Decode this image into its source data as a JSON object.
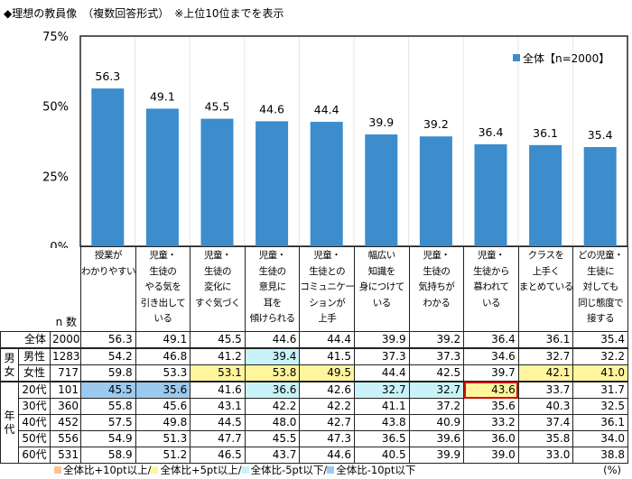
{
  "title": "◆理想の教員像　（複数回答形式）　※上位10位までを表示",
  "chart_data": {
    "type": "bar",
    "ylim": [
      0,
      75
    ],
    "yticks": [
      "0%",
      "25%",
      "50%",
      "75%"
    ],
    "ytick_values": [
      0,
      25,
      50,
      75
    ],
    "grid": "vertical separators",
    "legend_placement": "top-right",
    "bar_color": "#3d8ccc",
    "categories": [
      "授業がわかりやすい",
      "児童・生徒のやる気を引き出している",
      "児童・生徒の変化にすぐ気づく",
      "児童・生徒の意見に耳を傾けられる",
      "児童・生徒とのコミュニケーションが上手",
      "幅広い知識を身につけている",
      "児童・生徒の気持ちがわかる",
      "児童・生徒から慕われている",
      "クラスを上手くまとめている",
      "どの児童・生徒に対しても同じ態度で接する"
    ],
    "series": [
      {
        "name": "全体【n=2000】",
        "values": [
          56.3,
          49.1,
          45.5,
          44.6,
          44.4,
          39.9,
          39.2,
          36.4,
          36.1,
          35.4
        ]
      }
    ]
  },
  "table": {
    "n_header": "n 数",
    "headers": [
      [
        "授業が",
        "わかりやすい"
      ],
      [
        "児童・",
        "生徒の",
        "やる気を",
        "引き出して",
        "いる"
      ],
      [
        "児童・",
        "生徒の",
        "変化に",
        "すぐ気づく"
      ],
      [
        "児童・",
        "生徒の",
        "意見に",
        "耳を",
        "傾けられる"
      ],
      [
        "児童・",
        "生徒との",
        "コミュニケー",
        "ションが",
        "上手"
      ],
      [
        "幅広い",
        "知識を",
        "身につけて",
        "いる"
      ],
      [
        "児童・",
        "生徒の",
        "気持ちが",
        "わかる"
      ],
      [
        "児童・",
        "生徒から",
        "慕われて",
        "いる"
      ],
      [
        "クラスを",
        "上手く",
        "まとめている"
      ],
      [
        "どの児童・",
        "生徒に",
        "対しても",
        "同じ態度で",
        "接する"
      ]
    ],
    "groups": [
      {
        "label": "",
        "rows": [
          {
            "label": "全体",
            "n": "2000",
            "values": [
              "56.3",
              "49.1",
              "45.5",
              "44.6",
              "44.4",
              "39.9",
              "39.2",
              "36.4",
              "36.1",
              "35.4"
            ],
            "hl": [
              "",
              "",
              "",
              "",
              "",
              "",
              "",
              "",
              "",
              ""
            ]
          }
        ]
      },
      {
        "label": "男女",
        "rows": [
          {
            "label": "男性",
            "n": "1283",
            "values": [
              "54.2",
              "46.8",
              "41.2",
              "39.4",
              "41.5",
              "37.3",
              "37.3",
              "34.6",
              "32.7",
              "32.2"
            ],
            "hl": [
              "",
              "",
              "",
              "c",
              "",
              "",
              "",
              "",
              "",
              ""
            ]
          },
          {
            "label": "女性",
            "n": "717",
            "values": [
              "59.8",
              "53.3",
              "53.1",
              "53.8",
              "49.5",
              "44.4",
              "42.5",
              "39.7",
              "42.1",
              "41.0"
            ],
            "hl": [
              "",
              "",
              "y",
              "y",
              "y",
              "",
              "",
              "",
              "y",
              "y"
            ]
          }
        ]
      },
      {
        "label": "年代",
        "rows": [
          {
            "label": "20代",
            "n": "101",
            "values": [
              "45.5",
              "35.6",
              "41.6",
              "36.6",
              "42.6",
              "32.7",
              "32.7",
              "43.6",
              "33.7",
              "31.7"
            ],
            "hl": [
              "b",
              "b",
              "",
              "c",
              "",
              "c",
              "c",
              "yr",
              "",
              ""
            ]
          },
          {
            "label": "30代",
            "n": "360",
            "values": [
              "55.8",
              "45.6",
              "43.1",
              "42.2",
              "42.2",
              "41.1",
              "37.2",
              "35.6",
              "40.3",
              "32.5"
            ],
            "hl": [
              "",
              "",
              "",
              "",
              "",
              "",
              "",
              "",
              "",
              ""
            ]
          },
          {
            "label": "40代",
            "n": "452",
            "values": [
              "57.5",
              "49.8",
              "44.5",
              "48.0",
              "42.7",
              "43.8",
              "40.9",
              "33.2",
              "37.4",
              "36.1"
            ],
            "hl": [
              "",
              "",
              "",
              "",
              "",
              "",
              "",
              "",
              "",
              ""
            ]
          },
          {
            "label": "50代",
            "n": "556",
            "values": [
              "54.9",
              "51.3",
              "47.7",
              "45.5",
              "47.3",
              "36.5",
              "39.6",
              "36.0",
              "35.8",
              "34.0"
            ],
            "hl": [
              "",
              "",
              "",
              "",
              "",
              "",
              "",
              "",
              "",
              ""
            ]
          },
          {
            "label": "60代",
            "n": "531",
            "values": [
              "58.9",
              "51.2",
              "46.5",
              "43.7",
              "44.6",
              "40.5",
              "39.9",
              "39.0",
              "33.0",
              "38.8"
            ],
            "hl": [
              "",
              "",
              "",
              "",
              "",
              "",
              "",
              "",
              "",
              ""
            ]
          }
        ]
      }
    ]
  },
  "legend": [
    {
      "label": "全体比+10pt以上/",
      "color": "#f7c49a"
    },
    {
      "label": "全体比+5pt以上/",
      "color": "#fff59d"
    },
    {
      "label": "全体比-5pt以下/",
      "color": "#c9f3f8"
    },
    {
      "label": "全体比-10pt以下",
      "color": "#9cc9ef"
    }
  ],
  "unit": "(%)"
}
